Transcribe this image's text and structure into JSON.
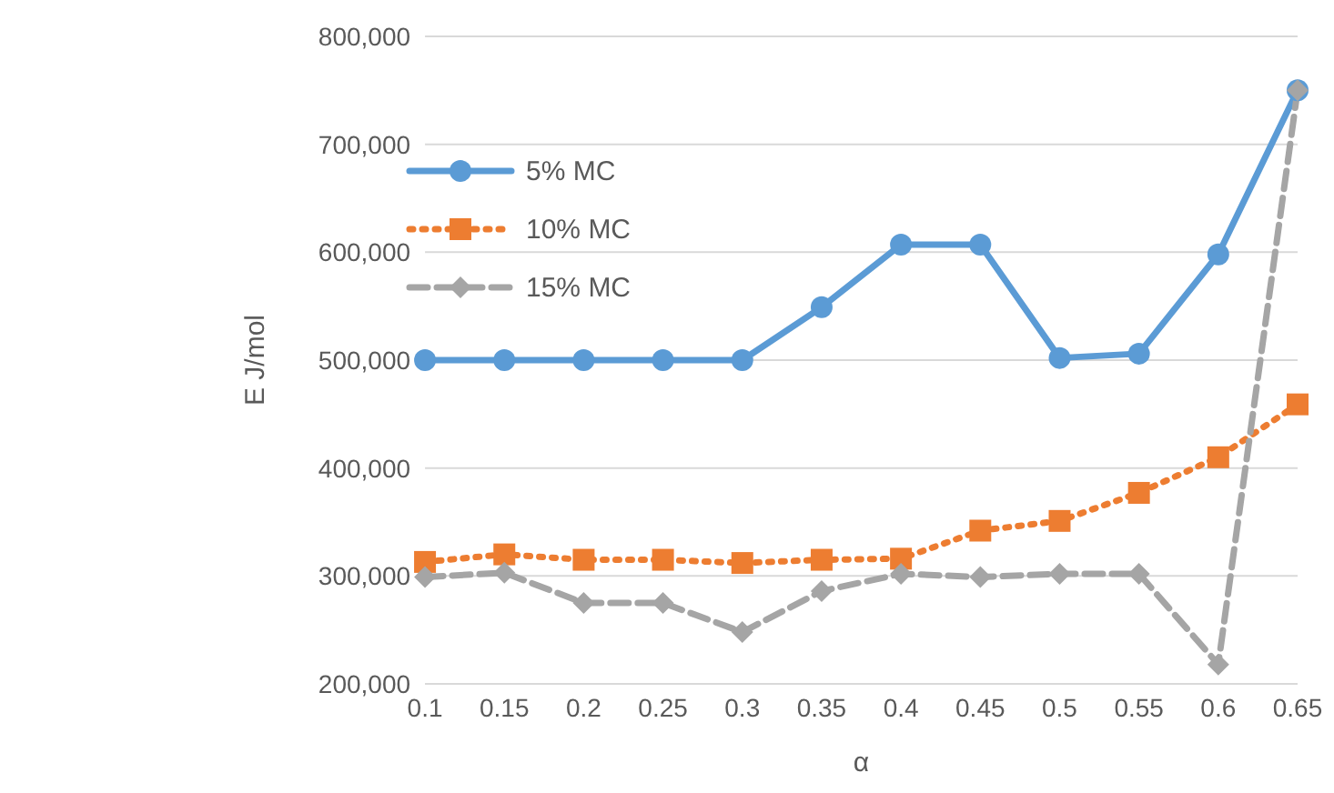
{
  "chart_data": {
    "type": "line",
    "xlabel": "α",
    "ylabel": "E J/mol",
    "categories": [
      "0.1",
      "0.15",
      "0.2",
      "0.25",
      "0.3",
      "0.35",
      "0.4",
      "0.45",
      "0.5",
      "0.55",
      "0.6",
      "0.65"
    ],
    "series": [
      {
        "name": "5% MC",
        "color": "#5b9bd5",
        "marker": "circle",
        "line_style": "solid",
        "values": [
          500000,
          500000,
          500000,
          500000,
          500000,
          549000,
          607000,
          607000,
          502000,
          506000,
          598000,
          750000
        ]
      },
      {
        "name": "10% MC",
        "color": "#ed7d31",
        "marker": "square",
        "line_style": "dotted",
        "values": [
          313000,
          320000,
          315000,
          315000,
          312000,
          315000,
          316000,
          342000,
          351000,
          377000,
          410000,
          459000
        ]
      },
      {
        "name": "15% MC",
        "color": "#a5a5a5",
        "marker": "diamond",
        "line_style": "dashed",
        "values": [
          299000,
          303000,
          275000,
          275000,
          248000,
          286000,
          302000,
          299000,
          302000,
          302000,
          218000,
          750000
        ]
      }
    ],
    "ylim": [
      200000,
      800000
    ],
    "yticks": [
      {
        "value": 200000,
        "label": "200,000"
      },
      {
        "value": 300000,
        "label": "300,000"
      },
      {
        "value": 400000,
        "label": "400,000"
      },
      {
        "value": 500000,
        "label": "500,000"
      },
      {
        "value": 600000,
        "label": "600,000"
      },
      {
        "value": 700000,
        "label": "700,000"
      },
      {
        "value": 800000,
        "label": "800,000"
      }
    ],
    "grid": "y",
    "legend": "top left"
  }
}
